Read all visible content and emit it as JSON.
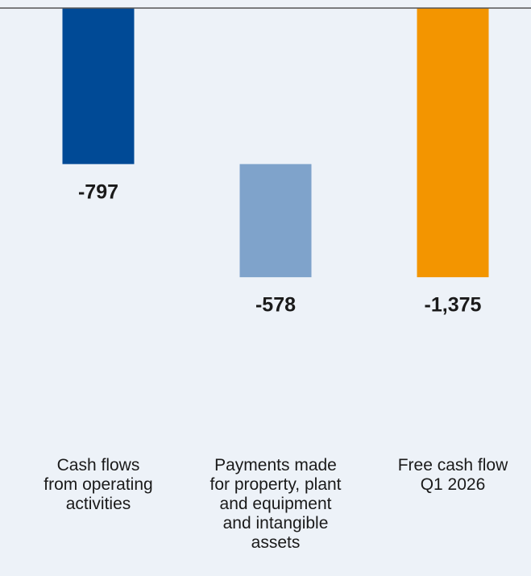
{
  "chart_data": {
    "type": "waterfall",
    "categories": [
      "Cash flows\nfrom operating\nactivities",
      "Payments made\nfor property, plant\nand equipment\nand intangible\nassets",
      "Free cash flow\nQ1 2026"
    ],
    "values": [
      -797,
      -578,
      -1375
    ],
    "value_labels": [
      "-797",
      "-578",
      "-1,375"
    ],
    "measure": [
      "relative",
      "relative",
      "total"
    ],
    "colors": [
      "#004a96",
      "#7fa3cb",
      "#f39500"
    ],
    "ylim": [
      -2000,
      0
    ]
  }
}
